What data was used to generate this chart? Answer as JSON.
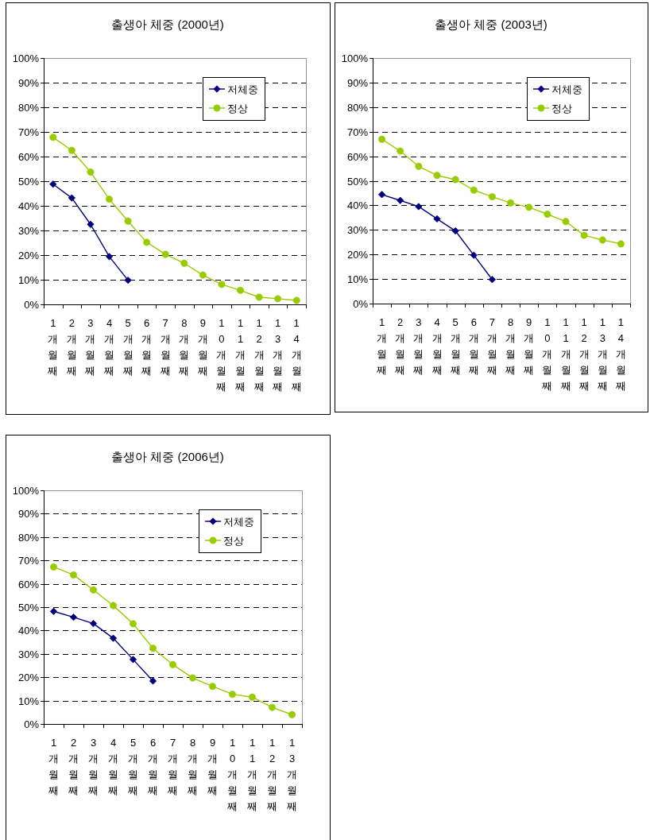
{
  "chart_data": [
    {
      "type": "line",
      "title": "출생아 체중 (2000년)",
      "categories": [
        "1개월째",
        "2개월째",
        "3개월째",
        "4개월째",
        "5개월째",
        "6개월째",
        "7개월째",
        "8개월째",
        "9개월째",
        "10개월째",
        "11개월째",
        "12개월째",
        "13개월째",
        "14개월째"
      ],
      "series": [
        {
          "name": "저체중",
          "color": "#000080",
          "marker": "diamond",
          "values": [
            48.8,
            43.2,
            32.5,
            19.4,
            9.8,
            null,
            null,
            null,
            null,
            null,
            null,
            null,
            null,
            null
          ]
        },
        {
          "name": "정상",
          "color": "#99cc00",
          "marker": "circle",
          "values": [
            67.8,
            62.5,
            53.7,
            42.7,
            33.8,
            25.2,
            20.3,
            16.7,
            11.9,
            8.1,
            5.7,
            2.9,
            2.3,
            1.6
          ]
        }
      ],
      "ylim": [
        0,
        100
      ],
      "yticks": [
        {
          "value": 0,
          "label": "0%"
        },
        {
          "value": 10,
          "label": "10%"
        },
        {
          "value": 20,
          "label": "20%"
        },
        {
          "value": 30,
          "label": "30%"
        },
        {
          "value": 40,
          "label": "40%"
        },
        {
          "value": 50,
          "label": "50%"
        },
        {
          "value": 60,
          "label": "60%"
        },
        {
          "value": 70,
          "label": "70%"
        },
        {
          "value": 80,
          "label": "80%"
        },
        {
          "value": 90,
          "label": "90%"
        },
        {
          "value": 100,
          "label": "100%"
        }
      ],
      "grid": "y",
      "legend": "top right",
      "line_style": "solid"
    },
    {
      "type": "line",
      "title": "출생아 체중 (2003년)",
      "categories": [
        "1개월째",
        "2개월째",
        "3개월째",
        "4개월째",
        "5개월째",
        "6개월째",
        "7개월째",
        "8개월째",
        "9개월째",
        "10개월째",
        "11개월째",
        "12개월째",
        "13개월째",
        "14개월째"
      ],
      "series": [
        {
          "name": "저체중",
          "color": "#000080",
          "marker": "diamond",
          "values": [
            44.4,
            42.0,
            39.5,
            34.5,
            29.6,
            19.7,
            9.8,
            null,
            null,
            null,
            null,
            null,
            null,
            null
          ]
        },
        {
          "name": "정상",
          "color": "#99cc00",
          "marker": "circle",
          "values": [
            66.9,
            62.1,
            55.9,
            52.2,
            50.5,
            46.2,
            43.5,
            41.0,
            39.2,
            36.4,
            33.4,
            27.8,
            25.9,
            24.3
          ]
        }
      ],
      "ylim": [
        0,
        100
      ],
      "yticks": [
        {
          "value": 0,
          "label": "0%"
        },
        {
          "value": 10,
          "label": "10%"
        },
        {
          "value": 20,
          "label": "20%"
        },
        {
          "value": 30,
          "label": "30%"
        },
        {
          "value": 40,
          "label": "40%"
        },
        {
          "value": 50,
          "label": "50%"
        },
        {
          "value": 60,
          "label": "60%"
        },
        {
          "value": 70,
          "label": "70%"
        },
        {
          "value": 80,
          "label": "80%"
        },
        {
          "value": 90,
          "label": "90%"
        },
        {
          "value": 100,
          "label": "100%"
        }
      ],
      "grid": "y",
      "legend": "top right",
      "line_style": "solid"
    },
    {
      "type": "line",
      "title": "출생아 체중 (2006년)",
      "categories": [
        "1개월째",
        "2개월째",
        "3개월째",
        "4개월째",
        "5개월째",
        "6개월째",
        "7개월째",
        "8개월째",
        "9개월째",
        "10개월째",
        "11개월째",
        "12개월째",
        "13개월째"
      ],
      "series": [
        {
          "name": "저체중",
          "color": "#000080",
          "marker": "diamond",
          "values": [
            48.2,
            45.7,
            43.0,
            36.7,
            27.6,
            18.4,
            null,
            null,
            null,
            null,
            null,
            null,
            null
          ]
        },
        {
          "name": "정상",
          "color": "#99cc00",
          "marker": "circle",
          "values": [
            67.2,
            63.8,
            57.4,
            50.7,
            42.9,
            32.4,
            25.4,
            19.7,
            16.1,
            12.7,
            11.5,
            7.1,
            4.0
          ]
        }
      ],
      "ylim": [
        0,
        100
      ],
      "yticks": [
        {
          "value": 0,
          "label": "0%"
        },
        {
          "value": 10,
          "label": "10%"
        },
        {
          "value": 20,
          "label": "20%"
        },
        {
          "value": 30,
          "label": "30%"
        },
        {
          "value": 40,
          "label": "40%"
        },
        {
          "value": 50,
          "label": "50%"
        },
        {
          "value": 60,
          "label": "60%"
        },
        {
          "value": 70,
          "label": "70%"
        },
        {
          "value": 80,
          "label": "80%"
        },
        {
          "value": 90,
          "label": "90%"
        },
        {
          "value": 100,
          "label": "100%"
        }
      ],
      "grid": "y",
      "legend": "top right",
      "line_style": "solid"
    }
  ]
}
